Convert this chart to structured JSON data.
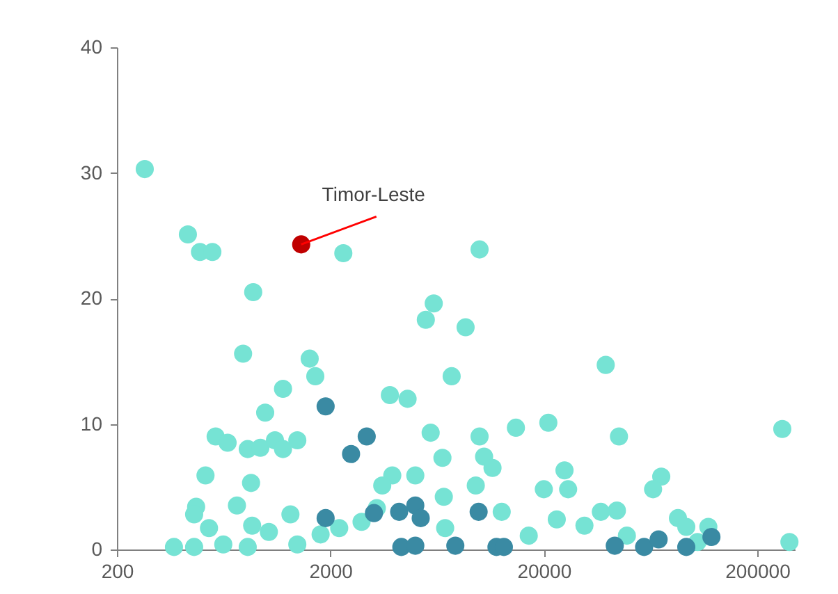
{
  "chart_data": {
    "type": "scatter",
    "log": "x",
    "grid": false,
    "legend": false,
    "marker": "circle",
    "xlim": [
      200,
      300000
    ],
    "xticks": [
      200,
      2000,
      20000,
      200000
    ],
    "ylim": [
      0,
      40
    ],
    "yticks": [
      0,
      10,
      20,
      30,
      40
    ],
    "annotations": [
      {
        "text": "Timor-Leste",
        "x": 1460,
        "y": 24.3
      }
    ],
    "series": [
      {
        "color": "#76e3d4",
        "x": [
          270,
          430,
          490,
          560,
          2300,
          870,
          780,
          1600,
          1700,
          1200,
          990,
          580,
          660,
          820,
          940,
          1100,
          1200,
          1400,
          520,
          850,
          470,
          730,
          10000,
          6100,
          5600,
          8600,
          7400,
          3800,
          4600,
          5900,
          10000,
          14800,
          21000,
          10500,
          11500,
          6700,
          25000,
          3900,
          5000,
          3500,
          9600,
          6800,
          20000,
          26000,
          39000,
          45000,
          262000,
          283000,
          71000,
          65000,
          85000,
          93000,
          118000,
          44000,
          37000,
          860,
          1030,
          540,
          630,
          820,
          1400,
          1800,
          2200,
          2800,
          6900,
          17000,
          31000,
          49000,
          105000,
          460,
          1300,
          3300,
          12700,
          23000,
          370,
          460
        ],
        "values": [
          30.3,
          25.1,
          23.7,
          23.7,
          23.6,
          20.5,
          15.6,
          15.2,
          13.8,
          12.8,
          10.9,
          9.0,
          8.5,
          8.0,
          8.1,
          8.7,
          8.0,
          8.7,
          5.9,
          5.3,
          3.4,
          3.5,
          23.9,
          19.6,
          18.3,
          17.7,
          13.8,
          12.3,
          12.0,
          9.3,
          9.0,
          9.7,
          10.1,
          7.4,
          6.5,
          7.3,
          6.3,
          5.9,
          5.9,
          5.1,
          5.1,
          4.2,
          4.8,
          4.8,
          14.7,
          9.0,
          9.6,
          0.6,
          5.8,
          4.8,
          2.5,
          1.8,
          1.8,
          3.1,
          3.0,
          1.9,
          1.4,
          1.7,
          0.4,
          0.2,
          0.4,
          1.2,
          1.7,
          2.2,
          1.7,
          1.1,
          1.9,
          1.1,
          0.6,
          2.8,
          2.8,
          3.3,
          3.0,
          2.4,
          0.2,
          0.2
        ]
      },
      {
        "color": "#3a8aa3",
        "x": [
          1900,
          2960,
          2500,
          1900,
          3200,
          4200,
          5000,
          5300,
          9900,
          4300,
          5000,
          7700,
          12000,
          13000,
          43000,
          59000,
          69000,
          93000,
          122000
        ],
        "values": [
          11.4,
          9.0,
          7.6,
          2.5,
          2.9,
          3.0,
          3.5,
          2.5,
          3.0,
          0.2,
          0.3,
          0.3,
          0.2,
          0.2,
          0.3,
          0.2,
          0.8,
          0.2,
          1.0
        ]
      },
      {
        "color": "#c00000",
        "x": [
          1460
        ],
        "values": [
          24.3
        ]
      }
    ]
  }
}
